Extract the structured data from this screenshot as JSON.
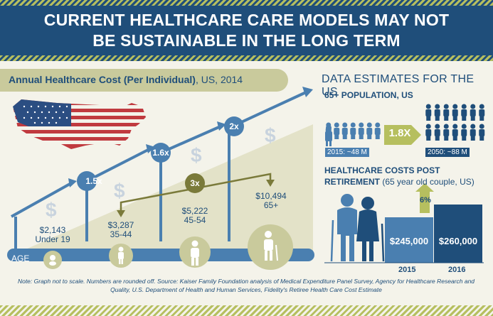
{
  "header": {
    "title_line1": "CURRENT HEALTHCARE CARE MODELS MAY NOT",
    "title_line2": "BE SUSTAINABLE IN THE LONG TERM"
  },
  "chart": {
    "title_bold": "Annual Healthcare Cost (Per Individual)",
    "title_rest": ", US, 2014",
    "axis_label": "AGE",
    "groups": [
      {
        "cost": "$2,143",
        "age": "Under 19"
      },
      {
        "cost": "$3,287",
        "age": "35-44"
      },
      {
        "cost": "$5,222",
        "age": "45-54"
      },
      {
        "cost": "$10,494",
        "age": "65+"
      }
    ],
    "multipliers": [
      "1.5x",
      "1.6x",
      "2x",
      "3x"
    ]
  },
  "estimates": {
    "title": "DATA ESTIMATES FOR THE US",
    "population_title": "65+ POPULATION, US",
    "multiplier": "1.8X",
    "pop_2015": "2015:  ~48 M",
    "pop_2050": "2050:  ~88 M",
    "costs_title_line1": "HEALTHCARE COSTS POST",
    "costs_title_line2_bold": "RETIREMENT",
    "costs_title_line2_rest": " (65 year old couple, US)",
    "increase": "6%",
    "bars": [
      {
        "value": "$245,000",
        "year": "2015"
      },
      {
        "value": "$260,000",
        "year": "2016"
      }
    ]
  },
  "note": "Note: Graph not to scale. Numbers are rounded off.  Source: Kaiser Family Foundation analysis of Medical Expenditure Panel Survey, Agency for Healthcare Research and Quality, U.S.  Department of Health and Human Services, Fidelity's Retiree Health Care Cost Estimate",
  "colors": {
    "navy": "#1f4e7a",
    "blue": "#4a7fb0",
    "olive": "#7a7a3a",
    "khaki": "#c9ca9c"
  }
}
